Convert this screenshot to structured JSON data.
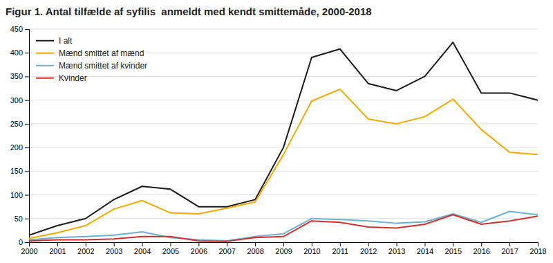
{
  "chart_data": {
    "type": "line",
    "title": "Figur 1. Antal tilfælde af syfilis  anmeldt med kendt smittemåde, 2000-2018",
    "x": [
      2000,
      2001,
      2002,
      2003,
      2004,
      2005,
      2006,
      2007,
      2008,
      2009,
      2010,
      2011,
      2012,
      2013,
      2014,
      2015,
      2016,
      2017,
      2018
    ],
    "series": [
      {
        "name": "I alt",
        "color": "#1a1a1a",
        "values": [
          15,
          35,
          50,
          90,
          118,
          112,
          75,
          75,
          90,
          200,
          390,
          408,
          335,
          320,
          350,
          422,
          315,
          315,
          300
        ]
      },
      {
        "name": "Mænd smittet af mænd",
        "color": "#f5a800",
        "values": [
          8,
          20,
          35,
          70,
          88,
          62,
          60,
          72,
          85,
          185,
          298,
          323,
          260,
          250,
          265,
          302,
          238,
          190,
          185
        ]
      },
      {
        "name": "Mænd smittet af kvinder",
        "color": "#6ab0d4",
        "values": [
          5,
          10,
          12,
          15,
          22,
          10,
          5,
          3,
          12,
          18,
          50,
          48,
          45,
          40,
          43,
          60,
          42,
          65,
          58
        ]
      },
      {
        "name": "Kvinder",
        "color": "#d0312d",
        "values": [
          3,
          5,
          5,
          7,
          12,
          12,
          3,
          2,
          10,
          12,
          45,
          42,
          32,
          30,
          38,
          58,
          38,
          45,
          55
        ]
      }
    ],
    "xlim": [
      2000,
      2018
    ],
    "xticks": [
      2000,
      2001,
      2002,
      2003,
      2004,
      2005,
      2006,
      2007,
      2008,
      2009,
      2010,
      2011,
      2012,
      2013,
      2014,
      2015,
      2016,
      2017,
      2018
    ],
    "ylim": [
      0,
      450
    ],
    "yticks": [
      0,
      50,
      100,
      150,
      200,
      250,
      300,
      350,
      400,
      450
    ],
    "grid": "y",
    "legend": "upper left"
  }
}
